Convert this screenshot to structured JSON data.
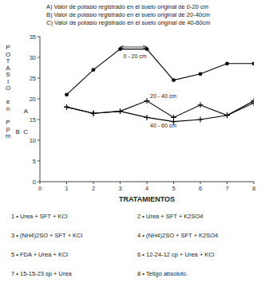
{
  "chart_data": {
    "type": "line",
    "title": [
      "A) Valor de potasio registrado en el suelo original de  0-20 cm",
      "B) Valor de potasio registrado en el suelo original de 20-40cm",
      "C) Valor de potasio registrado en el suelo original de 40-60cm"
    ],
    "x": [
      1,
      2,
      3,
      4,
      5,
      6,
      7,
      8
    ],
    "series": [
      {
        "name": "0 - 20  cm",
        "color": "black",
        "marker": "circle",
        "line_style": "solid",
        "values": [
          21.0,
          27.0,
          32.0,
          32.0,
          24.5,
          26.0,
          28.5,
          28.5
        ]
      },
      {
        "name": "20 - 40 cm",
        "color": "black",
        "marker": "plus",
        "line_style": "solid",
        "values": [
          18.0,
          16.5,
          17.0,
          19.5,
          15.5,
          18.5,
          16.0,
          19.5
        ]
      },
      {
        "name": "40 - 60 cm",
        "color": "black",
        "marker": "plus",
        "line_style": "solid",
        "values": [
          18.0,
          16.5,
          17.0,
          15.5,
          14.5,
          15.0,
          16.0,
          19.0
        ]
      }
    ],
    "xlabel": "TRATAMIENTOS",
    "ylabel": "POTASIO en Ppm",
    "xlim": [
      0,
      8
    ],
    "xticks": [
      0,
      1,
      2,
      3,
      4,
      5,
      6,
      7,
      8
    ],
    "ylim": [
      0,
      35
    ],
    "yticks": [
      0,
      5,
      10,
      15,
      20,
      25,
      30,
      35
    ],
    "grid": false,
    "annotations": [
      {
        "text": "A",
        "y": 17.0
      },
      {
        "text": "B  C",
        "y": 12.0
      },
      {
        "arrow": "<->",
        "x": [
          3.0,
          4.0
        ],
        "y": 32.5
      }
    ],
    "notes": [
      "1 • Urea + SFT + KCl",
      "2 • Urea + SFT + K2SO4",
      "3 • (NH4)2SO + SFT + KCl",
      "4 • (NH4)2SO + SFT + K2SO4",
      "5 • FDA + Urea + KCl",
      "6 • 12-24-12 cp + Urea + KCl",
      "7 • 15-15-23 sp + Urea",
      "8 • Tetigo absoluto."
    ]
  }
}
